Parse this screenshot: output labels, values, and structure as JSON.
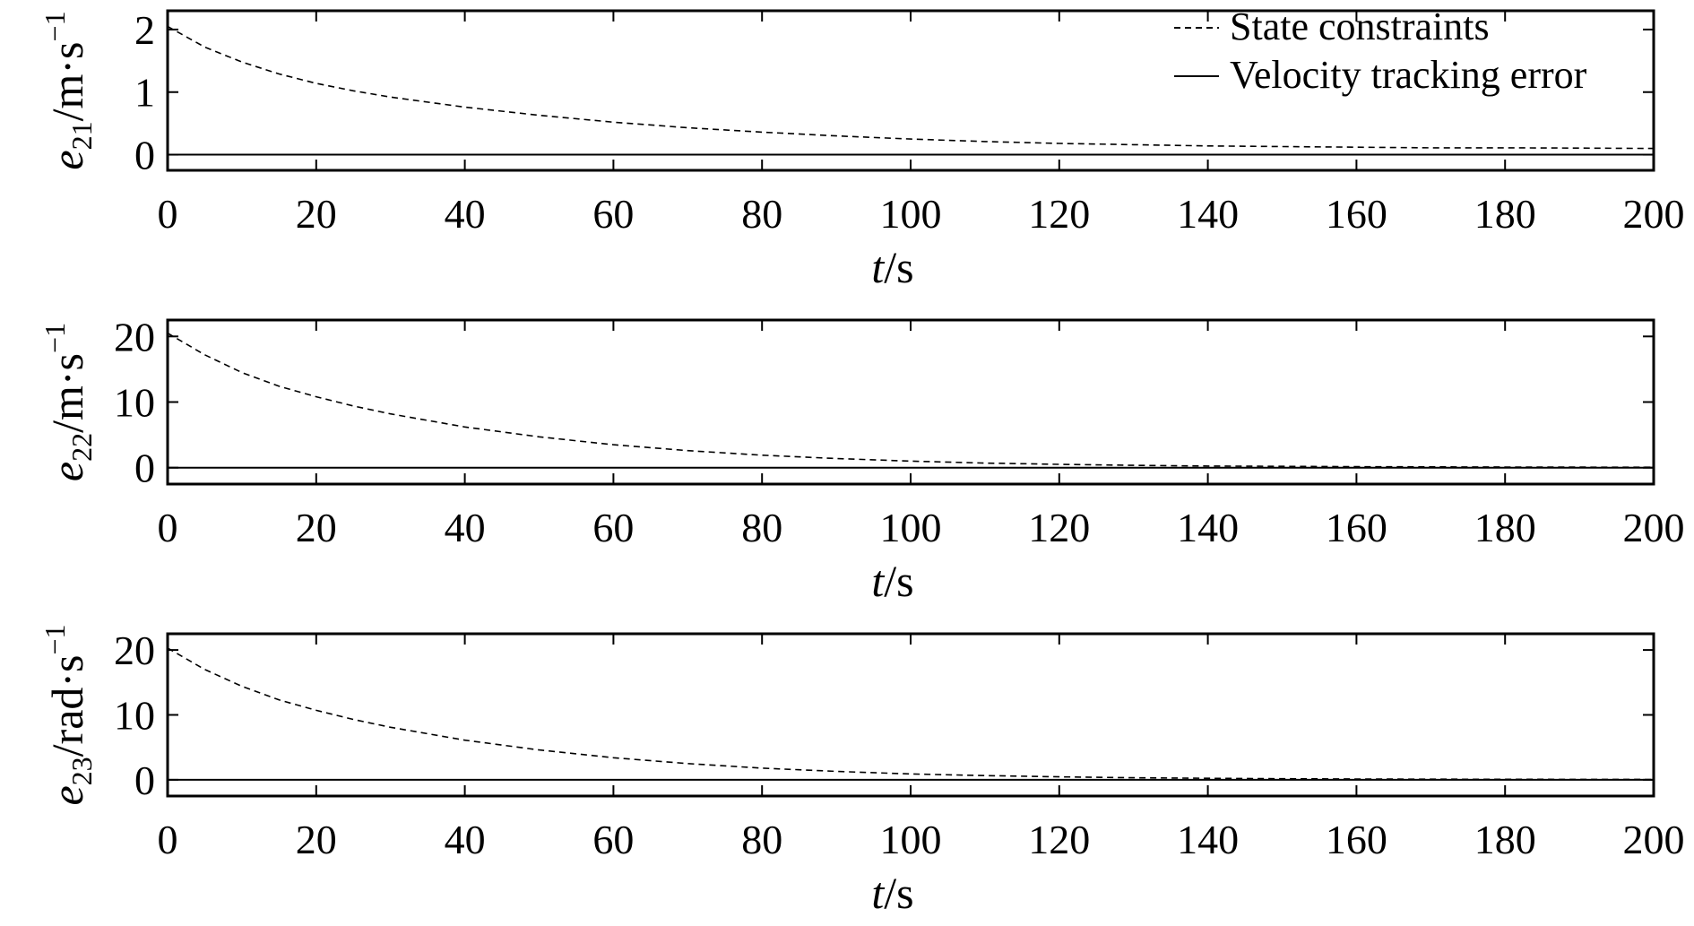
{
  "colors": {
    "background": "#ffffff",
    "ink": "#000000"
  },
  "chart_data": [
    {
      "type": "line",
      "ylabel": {
        "main": "e",
        "sub": "21",
        "unit": "/m·s",
        "sup": "−1"
      },
      "xlabel": {
        "italic": "t",
        "rest": "/s"
      },
      "xlim": [
        0,
        200
      ],
      "ylim": [
        -0.25,
        2.3
      ],
      "xticks": [
        0,
        20,
        40,
        60,
        80,
        100,
        120,
        140,
        160,
        180,
        200
      ],
      "yticks": [
        0,
        1,
        2
      ],
      "legend": {
        "position": "top-right",
        "entries": [
          {
            "label": "State constraints",
            "style": "dashed"
          },
          {
            "label": "Velocity tracking error",
            "style": "solid"
          }
        ]
      },
      "series": [
        {
          "name": "State constraints",
          "style": "dashed",
          "x": [
            0,
            5,
            10,
            15,
            20,
            25,
            30,
            40,
            50,
            60,
            70,
            80,
            90,
            100,
            110,
            120,
            130,
            140,
            150,
            160,
            170,
            180,
            190,
            200
          ],
          "y": [
            2.05,
            1.72,
            1.48,
            1.29,
            1.14,
            1.02,
            0.92,
            0.76,
            0.63,
            0.52,
            0.43,
            0.36,
            0.3,
            0.25,
            0.21,
            0.18,
            0.16,
            0.14,
            0.13,
            0.12,
            0.11,
            0.11,
            0.105,
            0.1
          ]
        },
        {
          "name": "Velocity tracking error",
          "style": "solid",
          "x": [
            0,
            200
          ],
          "y": [
            0,
            0
          ]
        }
      ]
    },
    {
      "type": "line",
      "ylabel": {
        "main": "e",
        "sub": "22",
        "unit": "/m·s",
        "sup": "−1"
      },
      "xlabel": {
        "italic": "t",
        "rest": "/s"
      },
      "xlim": [
        0,
        200
      ],
      "ylim": [
        -2.5,
        22.5
      ],
      "xticks": [
        0,
        20,
        40,
        60,
        80,
        100,
        120,
        140,
        160,
        180,
        200
      ],
      "yticks": [
        0,
        10,
        20
      ],
      "series": [
        {
          "style": "dashed",
          "x": [
            0,
            5,
            10,
            15,
            20,
            25,
            30,
            40,
            50,
            60,
            70,
            80,
            90,
            100,
            110,
            120,
            130,
            140,
            150,
            160,
            170,
            180,
            190,
            200
          ],
          "y": [
            20.5,
            17.2,
            14.5,
            12.4,
            10.8,
            9.4,
            8.2,
            6.2,
            4.7,
            3.5,
            2.6,
            1.9,
            1.4,
            1.0,
            0.7,
            0.5,
            0.35,
            0.25,
            0.2,
            0.15,
            0.12,
            0.1,
            0.08,
            0.07
          ]
        },
        {
          "style": "solid",
          "x": [
            0,
            200
          ],
          "y": [
            0,
            0
          ]
        }
      ]
    },
    {
      "type": "line",
      "ylabel": {
        "main": "e",
        "sub": "23",
        "unit": "/rad·s",
        "sup": "−1"
      },
      "xlabel": {
        "italic": "t",
        "rest": "/s"
      },
      "xlim": [
        0,
        200
      ],
      "ylim": [
        -2.5,
        22.5
      ],
      "xticks": [
        0,
        20,
        40,
        60,
        80,
        100,
        120,
        140,
        160,
        180,
        200
      ],
      "yticks": [
        0,
        10,
        20
      ],
      "series": [
        {
          "style": "dashed",
          "x": [
            0,
            5,
            10,
            15,
            20,
            25,
            30,
            40,
            50,
            60,
            70,
            80,
            90,
            100,
            110,
            120,
            130,
            140,
            150,
            160,
            170,
            180,
            190,
            200
          ],
          "y": [
            20.3,
            17.0,
            14.4,
            12.3,
            10.7,
            9.3,
            8.1,
            6.1,
            4.6,
            3.4,
            2.5,
            1.8,
            1.3,
            0.9,
            0.65,
            0.45,
            0.32,
            0.23,
            0.17,
            0.13,
            0.1,
            0.08,
            0.07,
            0.06
          ]
        },
        {
          "style": "solid",
          "x": [
            0,
            200
          ],
          "y": [
            0,
            0
          ]
        }
      ]
    }
  ]
}
